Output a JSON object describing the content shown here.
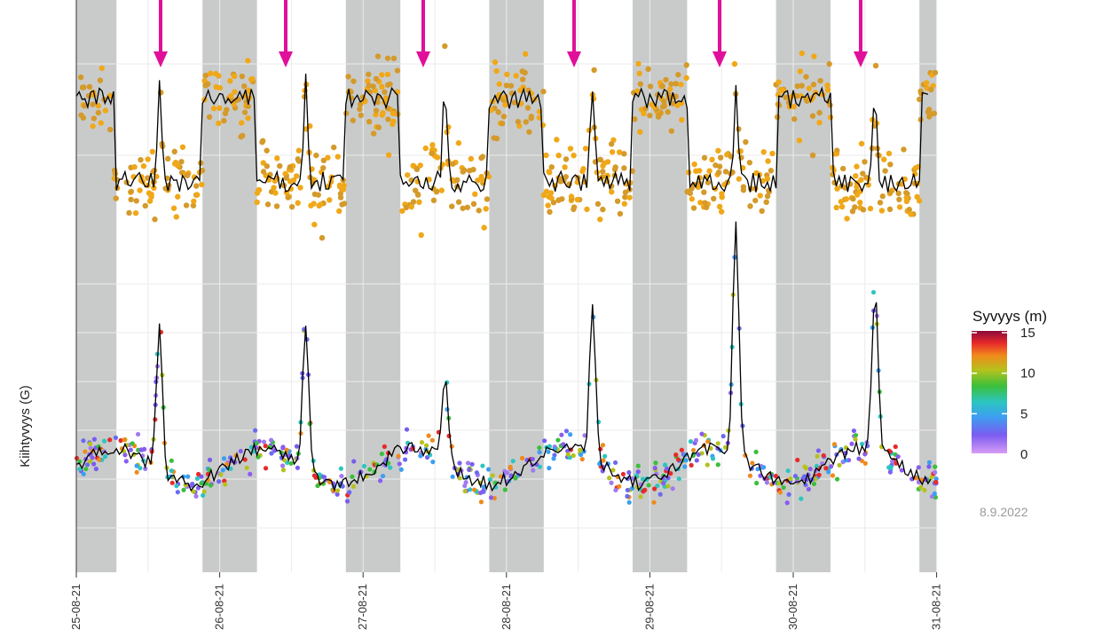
{
  "chart_data": {
    "type": "scatter",
    "ylabel": "Kiihtyvyys (G)",
    "x_ticks": [
      "25-08-21",
      "26-08-21",
      "27-08-21",
      "28-08-21",
      "29-08-21",
      "30-08-21",
      "31-08-21"
    ],
    "x_range_days": [
      "25-08-21",
      "31-08-21"
    ],
    "night_shading": "grey bands",
    "grid": true,
    "arrow_color": "#e0109a",
    "arrows_at": [
      "25-08-21 14:00",
      "26-08-21 14:30",
      "27-08-21 15:00",
      "28-08-21 14:30",
      "29-08-21 14:00",
      "30-08-21 15:00"
    ],
    "top_panel": {
      "point_color": "#f0a818",
      "line_color": "#000000"
    },
    "bottom_panel": {
      "peaks_at": [
        "25-08-21 14:00",
        "26-08-21 14:30",
        "27-08-21 15:00",
        "28-08-21 14:30",
        "29-08-21 14:00",
        "30-08-21 15:00"
      ],
      "line_color": "#000000"
    },
    "legend": {
      "title": "Syvyys (m)",
      "ticks": [
        "15",
        "10",
        "5",
        "0"
      ],
      "range": [
        0,
        15
      ],
      "position": "right"
    }
  },
  "stamp": "8.9.2022"
}
